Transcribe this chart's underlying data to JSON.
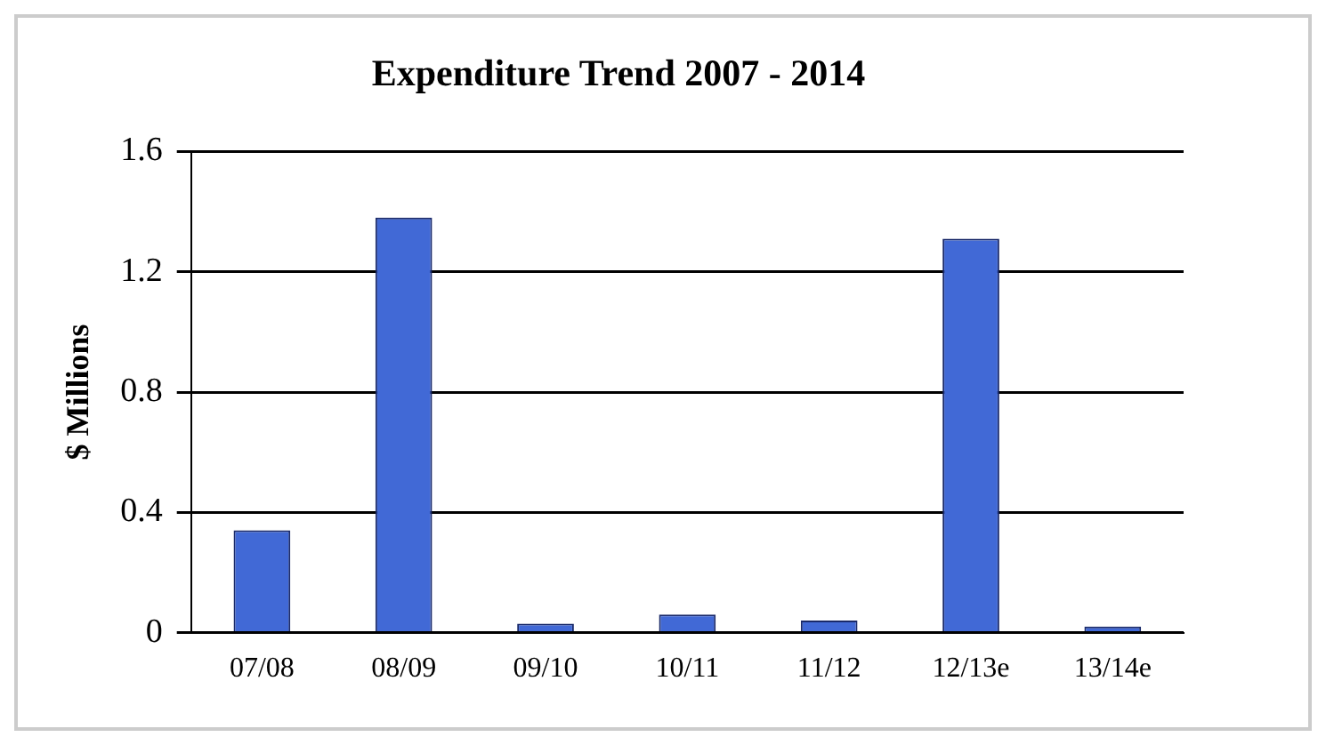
{
  "chart_data": {
    "type": "bar",
    "title": "Expenditure Trend 2007 - 2014",
    "ylabel": "$ Millions",
    "categories": [
      "07/08",
      "08/09",
      "09/10",
      "10/11",
      "11/12",
      "12/13e",
      "13/14e"
    ],
    "values": [
      0.34,
      1.38,
      0.03,
      0.06,
      0.04,
      1.31,
      0.02
    ],
    "color": "#4169d6",
    "ylim": [
      0,
      1.6
    ],
    "yticks": [
      0,
      0.4,
      0.8,
      1.2,
      1.6
    ],
    "grid": "y",
    "legend": false
  }
}
